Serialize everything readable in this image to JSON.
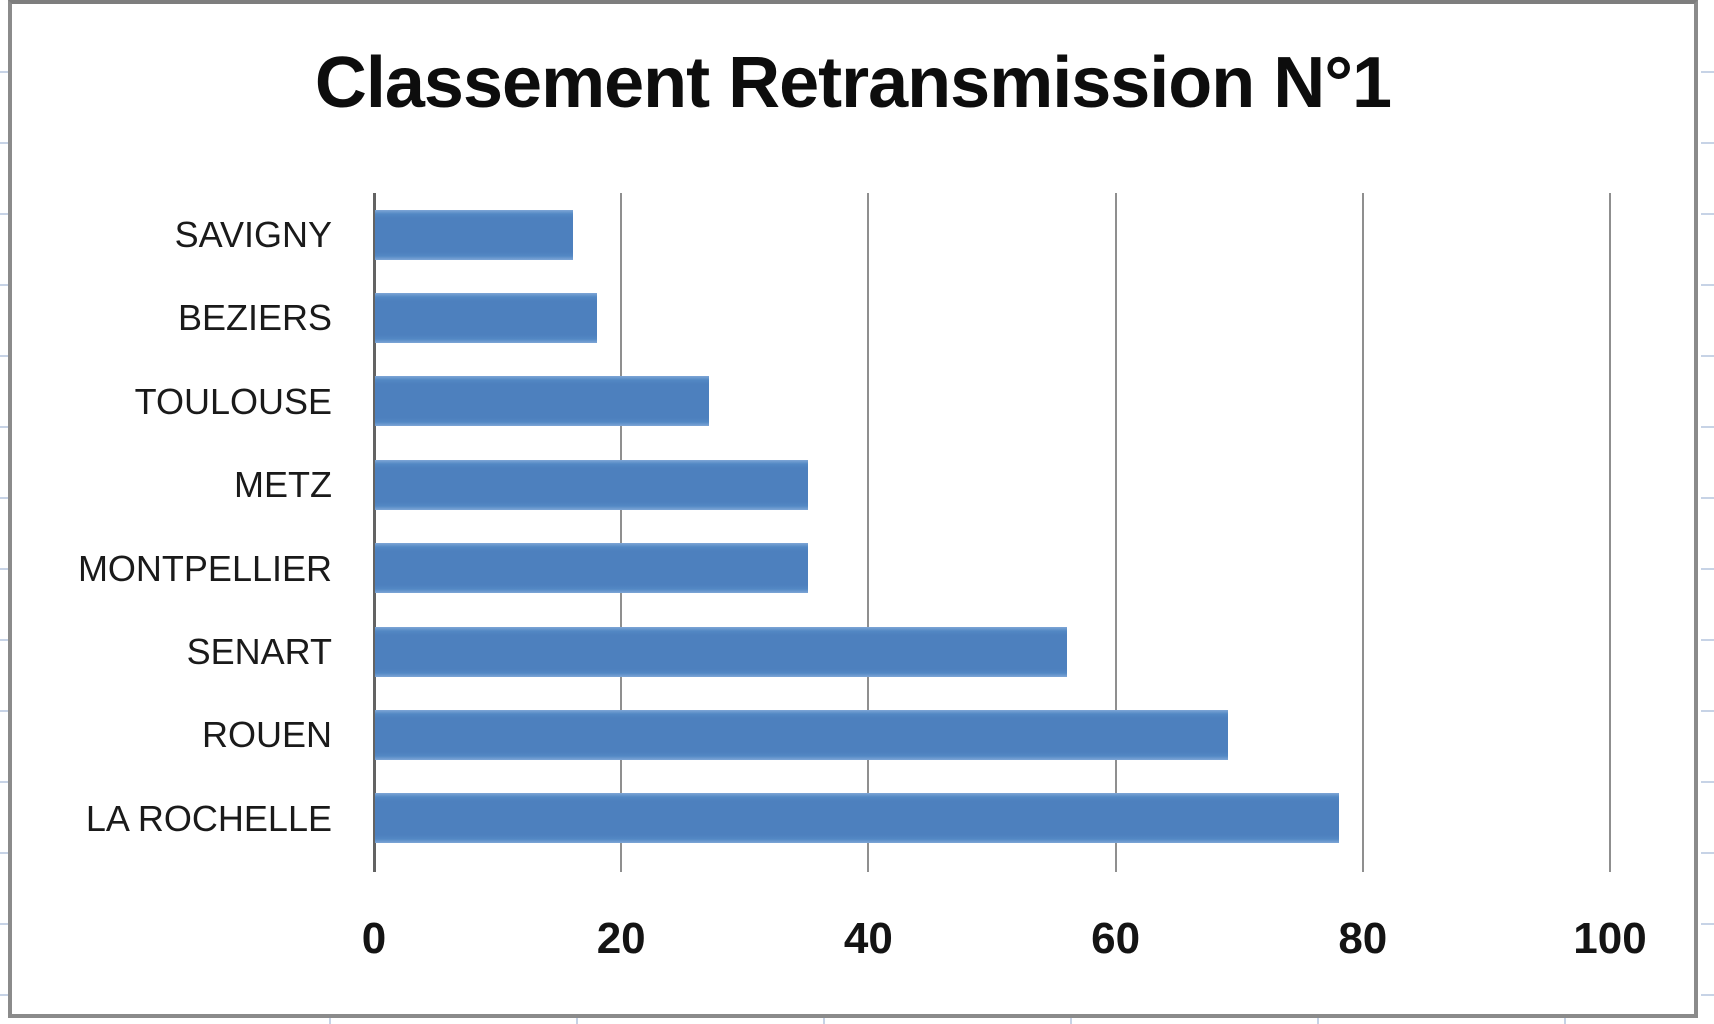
{
  "chart_data": {
    "type": "bar",
    "orientation": "horizontal",
    "title": "Classement Retransmission N°1",
    "categories": [
      "SAVIGNY",
      "BEZIERS",
      "TOULOUSE",
      "METZ",
      "MONTPELLIER",
      "SENART",
      "ROUEN",
      "LA ROCHELLE"
    ],
    "values": [
      16,
      18,
      27,
      35,
      35,
      56,
      69,
      78
    ],
    "xlabel": "",
    "ylabel": "",
    "xlim": [
      0,
      100
    ],
    "x_ticks": [
      0,
      20,
      40,
      60,
      80,
      100
    ],
    "x_tick_labels": [
      "0",
      "20",
      "40",
      "60",
      "80",
      "100"
    ],
    "grid": true,
    "legend": "none",
    "colors": {
      "bar": "#4d80be",
      "bar_edge_highlight": "#7ea6d6",
      "gridline": "#8f8f8f",
      "axis_line": "#636363",
      "title_text": "#0d0d0d",
      "label_text": "#1a1a1a",
      "chart_border": "#8b8b8b",
      "sheet_gridline": "#c7d3e6",
      "background": "#ffffff"
    }
  }
}
